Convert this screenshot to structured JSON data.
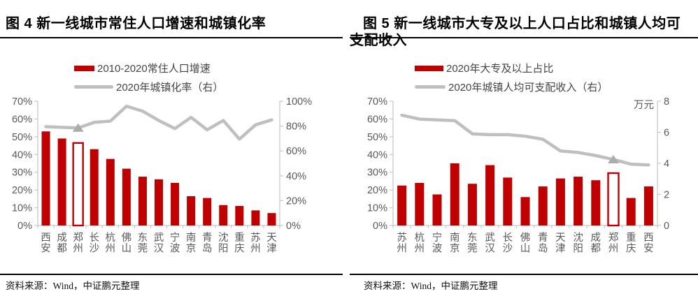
{
  "colors": {
    "bar_red": "#C00000",
    "line_gray": "#BFBFBF",
    "marker_gray": "#ACACAC",
    "axis_line": "#C6C6C6",
    "axis_text": "#595959",
    "title_text": "#000000",
    "rule_black": "#000000"
  },
  "figures": [
    {
      "title": "图 4  新一线城市常住人口增速和城镇化率",
      "source": "资料来源：Wind，中证鹏元整理"
    },
    {
      "title": "图 5  新一线城市大专及以上人口占比和城镇人均可支配收入",
      "source": "资料来源：Wind，中证鹏元整理"
    }
  ],
  "chart_data": [
    {
      "type": "bar+line",
      "title": "新一线城市常住人口增速和城镇化率",
      "categories": [
        "西安",
        "成都",
        "郑州",
        "长沙",
        "杭州",
        "佛山",
        "东莞",
        "武汉",
        "宁波",
        "南京",
        "青岛",
        "沈阳",
        "重庆",
        "苏州",
        "天津"
      ],
      "series": [
        {
          "name": "2010-2020常住人口增速",
          "type": "bar",
          "axis": "left",
          "values": [
            53,
            49,
            46.5,
            43,
            37.5,
            32,
            27.5,
            26,
            24,
            16.5,
            15.5,
            11.5,
            11,
            8.5,
            7
          ]
        },
        {
          "name": "2020年城镇化率（右）",
          "type": "line",
          "axis": "right",
          "values": [
            79.5,
            79,
            78.5,
            83,
            84,
            96,
            92,
            84.5,
            78,
            87,
            77,
            84.5,
            69.5,
            81,
            85
          ]
        }
      ],
      "left_axis": {
        "min": 0,
        "max": 70,
        "step": 10,
        "suffix": "%"
      },
      "right_axis": {
        "min": 0,
        "max": 100,
        "step": 20,
        "suffix": "%",
        "unit": ""
      },
      "highlight_index": 2,
      "highlight_style": "hollow-bar-and-triangle-marker",
      "grid": false,
      "legend_position": "top"
    },
    {
      "type": "bar+line",
      "title": "新一线城市大专及以上人口占比和城镇人均可支配收入",
      "categories": [
        "苏州",
        "杭州",
        "宁波",
        "南京",
        "东莞",
        "武汉",
        "长沙",
        "佛山",
        "青岛",
        "天津",
        "沈阳",
        "成都",
        "郑州",
        "重庆",
        "西安"
      ],
      "series": [
        {
          "name": "2020年大专及以上占比",
          "type": "bar",
          "axis": "left",
          "values": [
            22.5,
            24,
            17.5,
            35,
            23.5,
            34,
            27,
            16,
            22,
            26.5,
            27.5,
            25.5,
            29.5,
            15.5,
            22
          ]
        },
        {
          "name": "2020年城镇人均可支配收入（右）",
          "type": "line",
          "axis": "right",
          "values": [
            7.1,
            6.85,
            6.8,
            6.75,
            5.9,
            5.85,
            5.85,
            5.75,
            5.55,
            4.8,
            4.7,
            4.5,
            4.25,
            3.95,
            3.9
          ]
        }
      ],
      "left_axis": {
        "min": 0,
        "max": 70,
        "step": 10,
        "suffix": "%"
      },
      "right_axis": {
        "min": 0,
        "max": 8,
        "step": 2,
        "suffix": "",
        "unit": "万元"
      },
      "highlight_index": 12,
      "highlight_style": "hollow-bar-and-triangle-marker",
      "grid": false,
      "legend_position": "top"
    }
  ]
}
